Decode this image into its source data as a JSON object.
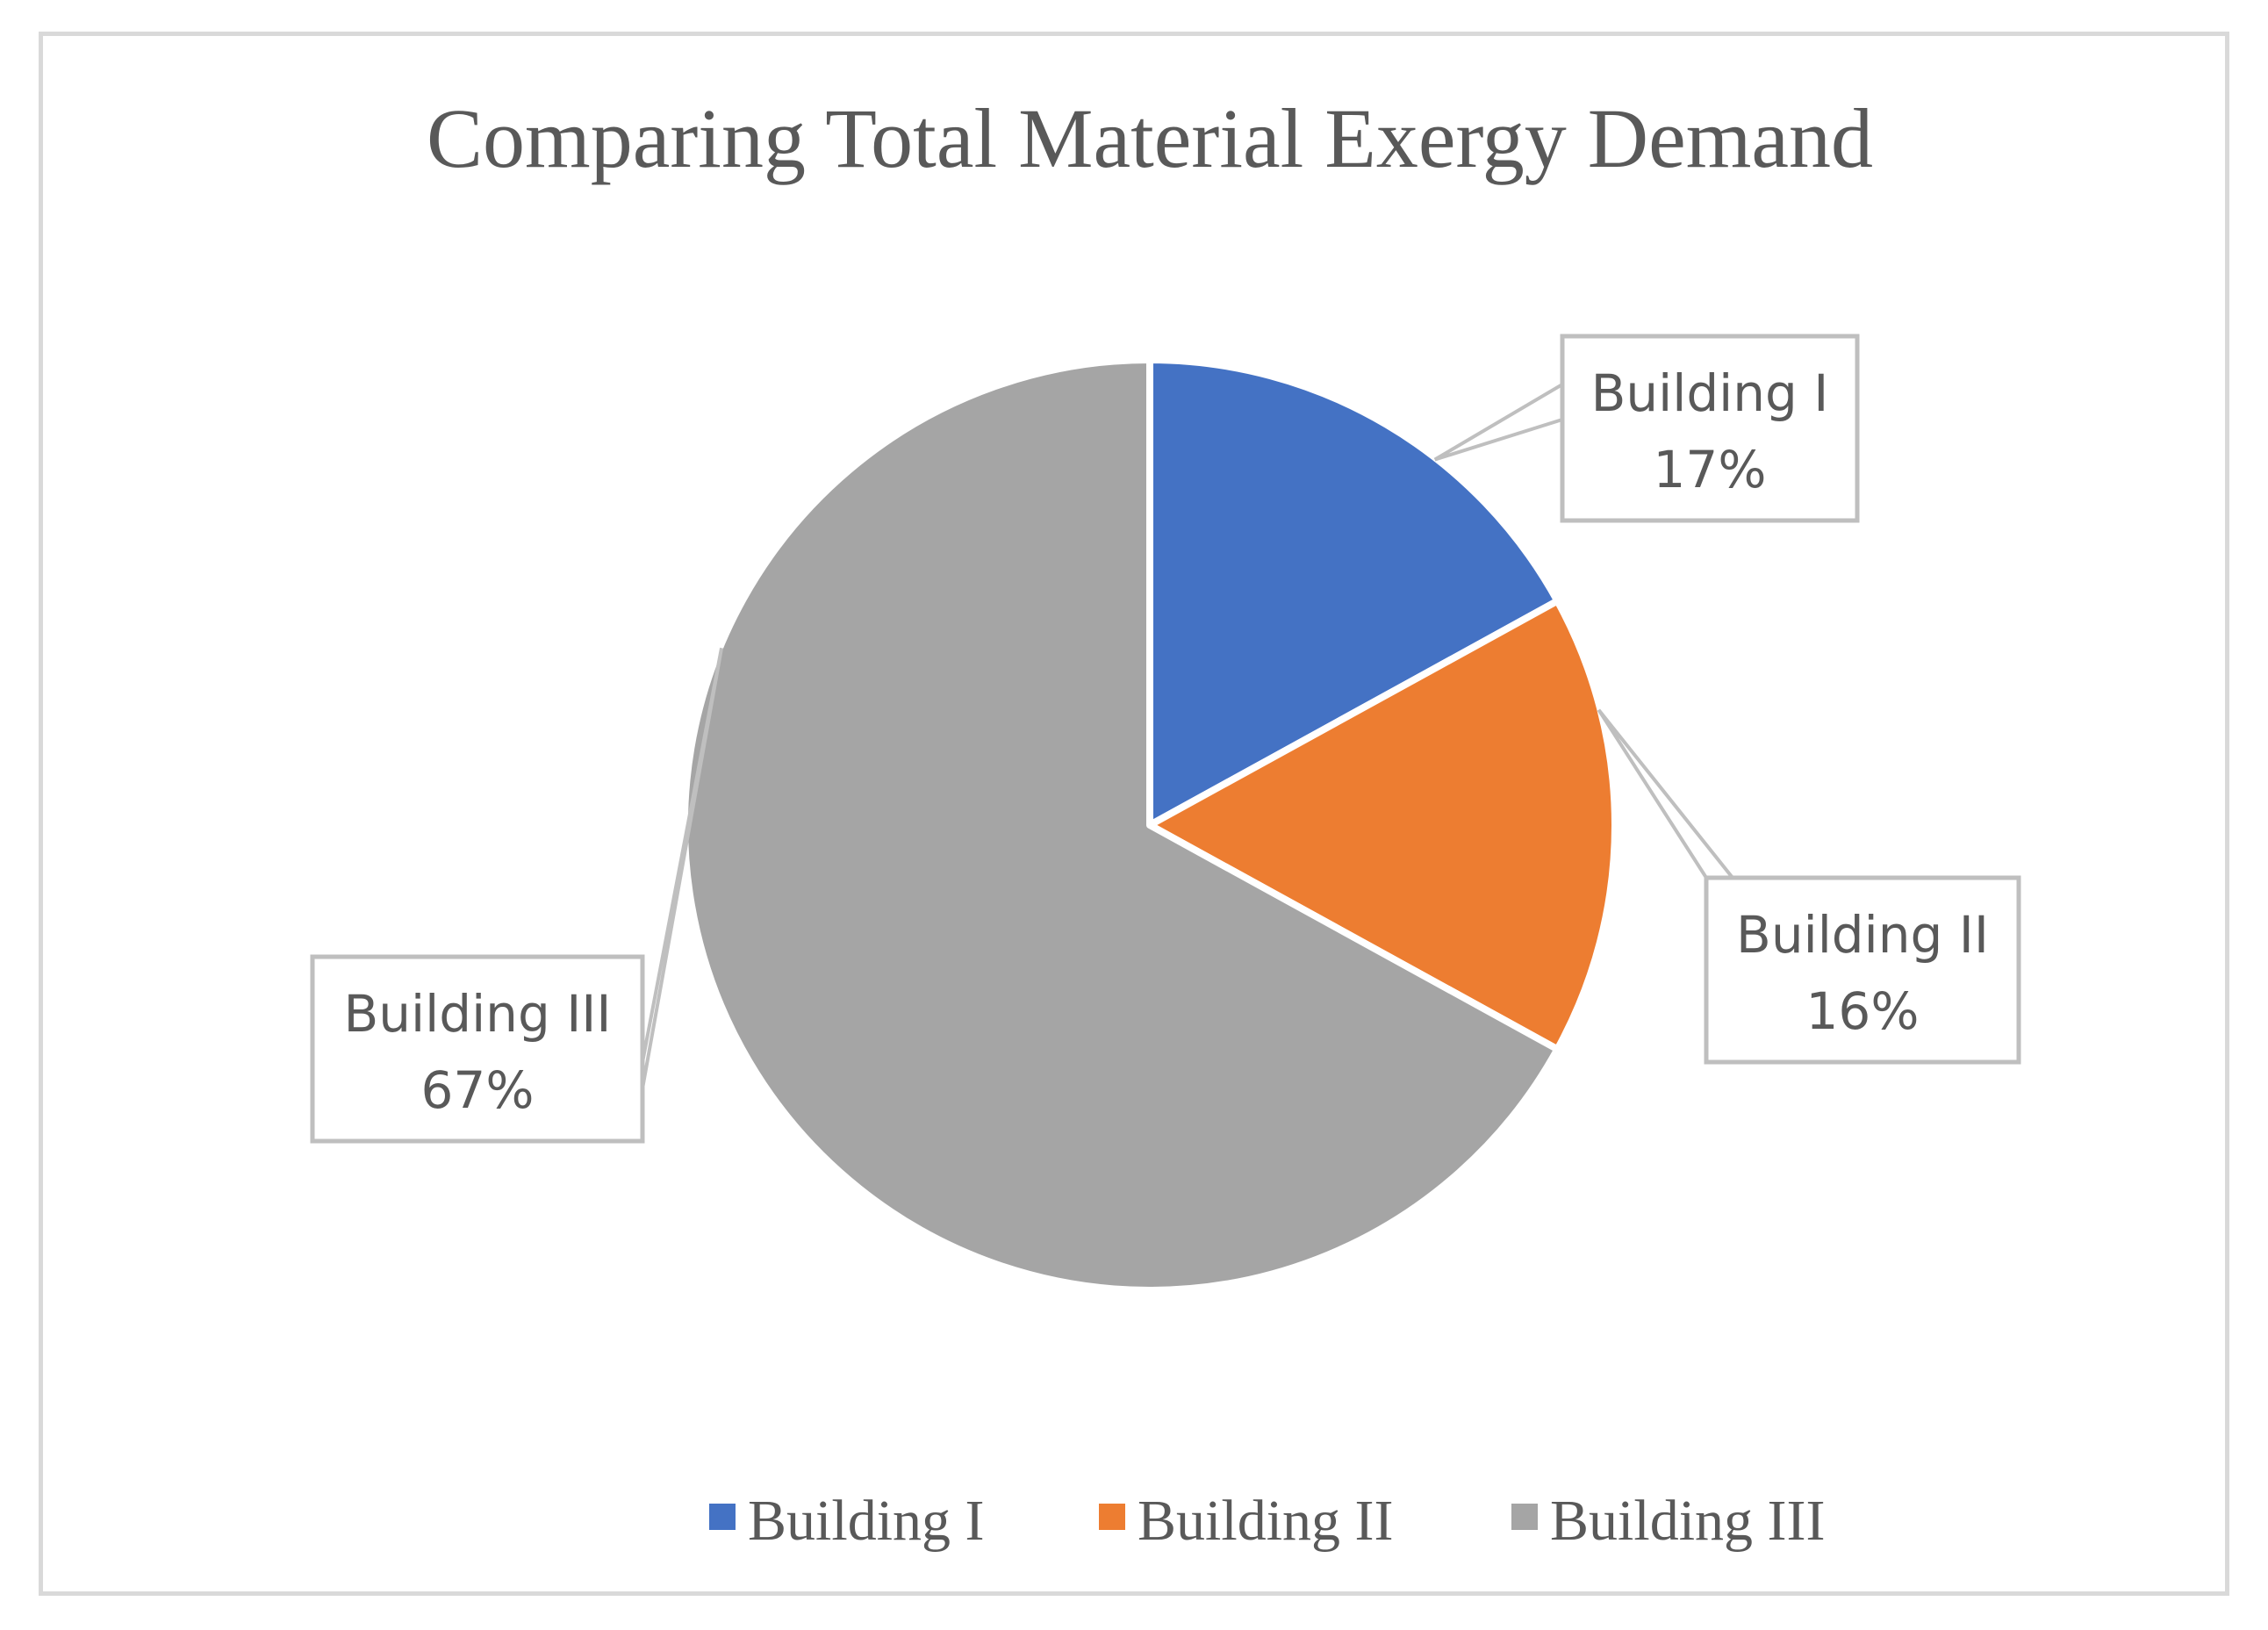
{
  "chart_data": {
    "type": "pie",
    "title": "Comparing Total Material Exergy Demand",
    "start_angle_deg": 0,
    "direction": "clockwise",
    "slices": [
      {
        "label": "Building I",
        "value": 17,
        "percent_label": "17%",
        "color": "#4472c4"
      },
      {
        "label": "Building II",
        "value": 16,
        "percent_label": "16%",
        "color": "#ed7d31"
      },
      {
        "label": "Building III",
        "value": 67,
        "percent_label": "67%",
        "color": "#a5a5a5"
      }
    ],
    "legend": {
      "position": "bottom",
      "entries": [
        "Building I",
        "Building II",
        "Building III"
      ]
    },
    "data_labels": "callout boxes with category name and percentage"
  },
  "colors": {
    "border": "#d9d9d9",
    "text": "#595959",
    "leader": "#bfbfbf"
  }
}
